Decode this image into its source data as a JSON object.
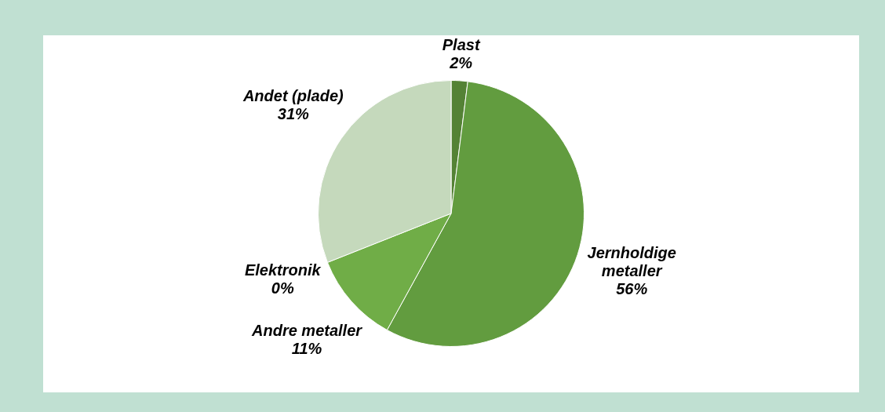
{
  "chart_data": {
    "type": "pie",
    "categories": [
      "Plast",
      "Jernholdige metaller",
      "Andre metaller",
      "Elektronik",
      "Andet (plade)"
    ],
    "values": [
      2,
      56,
      11,
      0,
      31
    ],
    "colors": [
      "#548235",
      "#629c3f",
      "#70ad47",
      "#a9d18e",
      "#c5d9bc"
    ],
    "value_labels": [
      "2%",
      "56%",
      "11%",
      "0%",
      "31%"
    ],
    "legend": false
  }
}
